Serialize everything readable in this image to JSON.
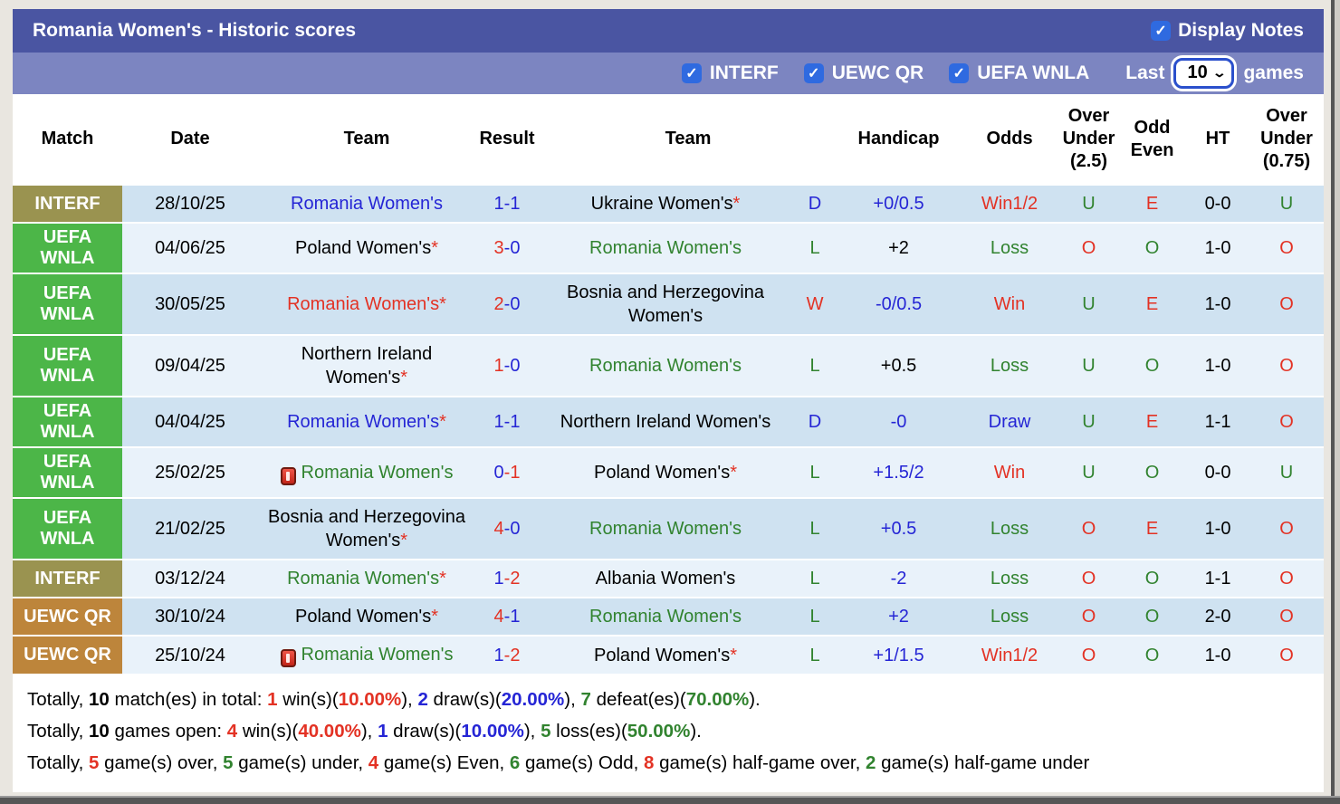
{
  "colors": {
    "badge_interf": "#9a9350",
    "badge_uefa_wnla": "#4cb648",
    "badge_uewc_qr": "#bd853b",
    "title_bar": "#4a55a2",
    "filter_bar": "#7c85c1",
    "checkbox_blue": "#2f6ae0",
    "row_dark": "#cfe2f1",
    "row_light": "#e9f2fa",
    "text_red": "#e33224",
    "text_blue": "#2525d5",
    "text_green": "#31832f"
  },
  "title_bar": {
    "title": "Romania Women's - Historic scores",
    "display_notes_label": "Display Notes",
    "display_notes_checked": true,
    "check_glyph": "✓"
  },
  "filter_bar": {
    "competitions": [
      {
        "label": "INTERF",
        "checked": true
      },
      {
        "label": "UEWC QR",
        "checked": true
      },
      {
        "label": "UEFA WNLA",
        "checked": true
      }
    ],
    "last_label": "Last",
    "games_count": "10",
    "chevron": "⌄",
    "games_label": "games"
  },
  "table": {
    "headers": [
      "Match",
      "Date",
      "Team",
      "Result",
      "Team",
      "Handicap",
      "Odds",
      "Over Under (2.5)",
      "Odd Even",
      "HT",
      "Over Under (0.75)"
    ],
    "rows": [
      {
        "competition": "INTERF",
        "badge_color": "#9a9350",
        "date": "28/10/25",
        "team1": {
          "name": "Romania Women's",
          "color": "blue",
          "asterisk": false,
          "icon": false
        },
        "result": {
          "s1": "1",
          "c1": "blue",
          "s2": "-1",
          "c2": "blue"
        },
        "team2": {
          "name": "Ukraine Women's",
          "color": "black",
          "asterisk": true,
          "icon": false
        },
        "wdl": {
          "text": "D",
          "color": "blue"
        },
        "handicap": {
          "text": "+0/0.5",
          "color": "blue"
        },
        "odds": {
          "text": "Win1/2",
          "color": "red"
        },
        "ou25": {
          "text": "U",
          "color": "green"
        },
        "oddeven": {
          "text": "E",
          "color": "red"
        },
        "ht": "0-0",
        "ou075": {
          "text": "U",
          "color": "green"
        }
      },
      {
        "competition": "UEFA WNLA",
        "badge_color": "#4cb648",
        "date": "04/06/25",
        "team1": {
          "name": "Poland Women's",
          "color": "black",
          "asterisk": true,
          "icon": false
        },
        "result": {
          "s1": "3",
          "c1": "red",
          "s2": "-0",
          "c2": "blue"
        },
        "team2": {
          "name": "Romania Women's",
          "color": "green",
          "asterisk": false,
          "icon": false
        },
        "wdl": {
          "text": "L",
          "color": "green"
        },
        "handicap": {
          "text": "+2",
          "color": "black"
        },
        "odds": {
          "text": "Loss",
          "color": "green"
        },
        "ou25": {
          "text": "O",
          "color": "red"
        },
        "oddeven": {
          "text": "O",
          "color": "green"
        },
        "ht": "1-0",
        "ou075": {
          "text": "O",
          "color": "red"
        }
      },
      {
        "competition": "UEFA WNLA",
        "badge_color": "#4cb648",
        "date": "30/05/25",
        "team1": {
          "name": "Romania Women's",
          "color": "red",
          "asterisk": true,
          "icon": false
        },
        "result": {
          "s1": "2",
          "c1": "red",
          "s2": "-0",
          "c2": "blue"
        },
        "team2": {
          "name": "Bosnia and Herzegovina Women's",
          "color": "black",
          "asterisk": false,
          "icon": false
        },
        "wdl": {
          "text": "W",
          "color": "red"
        },
        "handicap": {
          "text": "-0/0.5",
          "color": "blue"
        },
        "odds": {
          "text": "Win",
          "color": "red"
        },
        "ou25": {
          "text": "U",
          "color": "green"
        },
        "oddeven": {
          "text": "E",
          "color": "red"
        },
        "ht": "1-0",
        "ou075": {
          "text": "O",
          "color": "red"
        }
      },
      {
        "competition": "UEFA WNLA",
        "badge_color": "#4cb648",
        "date": "09/04/25",
        "team1": {
          "name": "Northern Ireland Women's",
          "color": "black",
          "asterisk": true,
          "icon": false
        },
        "result": {
          "s1": "1",
          "c1": "red",
          "s2": "-0",
          "c2": "blue"
        },
        "team2": {
          "name": "Romania Women's",
          "color": "green",
          "asterisk": false,
          "icon": false
        },
        "wdl": {
          "text": "L",
          "color": "green"
        },
        "handicap": {
          "text": "+0.5",
          "color": "black"
        },
        "odds": {
          "text": "Loss",
          "color": "green"
        },
        "ou25": {
          "text": "U",
          "color": "green"
        },
        "oddeven": {
          "text": "O",
          "color": "green"
        },
        "ht": "1-0",
        "ou075": {
          "text": "O",
          "color": "red"
        }
      },
      {
        "competition": "UEFA WNLA",
        "badge_color": "#4cb648",
        "date": "04/04/25",
        "team1": {
          "name": "Romania Women's",
          "color": "blue",
          "asterisk": true,
          "icon": false
        },
        "result": {
          "s1": "1",
          "c1": "blue",
          "s2": "-1",
          "c2": "blue"
        },
        "team2": {
          "name": "Northern Ireland Women's",
          "color": "black",
          "asterisk": false,
          "icon": false
        },
        "wdl": {
          "text": "D",
          "color": "blue"
        },
        "handicap": {
          "text": "-0",
          "color": "blue"
        },
        "odds": {
          "text": "Draw",
          "color": "blue"
        },
        "ou25": {
          "text": "U",
          "color": "green"
        },
        "oddeven": {
          "text": "E",
          "color": "red"
        },
        "ht": "1-1",
        "ou075": {
          "text": "O",
          "color": "red"
        }
      },
      {
        "competition": "UEFA WNLA",
        "badge_color": "#4cb648",
        "date": "25/02/25",
        "team1": {
          "name": "Romania Women's",
          "color": "green",
          "asterisk": false,
          "icon": true
        },
        "result": {
          "s1": "0",
          "c1": "blue",
          "s2": "-1",
          "c2": "red"
        },
        "team2": {
          "name": "Poland Women's",
          "color": "black",
          "asterisk": true,
          "icon": false
        },
        "wdl": {
          "text": "L",
          "color": "green"
        },
        "handicap": {
          "text": "+1.5/2",
          "color": "blue"
        },
        "odds": {
          "text": "Win",
          "color": "red"
        },
        "ou25": {
          "text": "U",
          "color": "green"
        },
        "oddeven": {
          "text": "O",
          "color": "green"
        },
        "ht": "0-0",
        "ou075": {
          "text": "U",
          "color": "green"
        }
      },
      {
        "competition": "UEFA WNLA",
        "badge_color": "#4cb648",
        "date": "21/02/25",
        "team1": {
          "name": "Bosnia and Herzegovina Women's",
          "color": "black",
          "asterisk": true,
          "icon": false
        },
        "result": {
          "s1": "4",
          "c1": "red",
          "s2": "-0",
          "c2": "blue"
        },
        "team2": {
          "name": "Romania Women's",
          "color": "green",
          "asterisk": false,
          "icon": false
        },
        "wdl": {
          "text": "L",
          "color": "green"
        },
        "handicap": {
          "text": "+0.5",
          "color": "blue"
        },
        "odds": {
          "text": "Loss",
          "color": "green"
        },
        "ou25": {
          "text": "O",
          "color": "red"
        },
        "oddeven": {
          "text": "E",
          "color": "red"
        },
        "ht": "1-0",
        "ou075": {
          "text": "O",
          "color": "red"
        }
      },
      {
        "competition": "INTERF",
        "badge_color": "#9a9350",
        "date": "03/12/24",
        "team1": {
          "name": "Romania Women's",
          "color": "green",
          "asterisk": true,
          "icon": false
        },
        "result": {
          "s1": "1",
          "c1": "blue",
          "s2": "-2",
          "c2": "red"
        },
        "team2": {
          "name": "Albania Women's",
          "color": "black",
          "asterisk": false,
          "icon": false
        },
        "wdl": {
          "text": "L",
          "color": "green"
        },
        "handicap": {
          "text": "-2",
          "color": "blue"
        },
        "odds": {
          "text": "Loss",
          "color": "green"
        },
        "ou25": {
          "text": "O",
          "color": "red"
        },
        "oddeven": {
          "text": "O",
          "color": "green"
        },
        "ht": "1-1",
        "ou075": {
          "text": "O",
          "color": "red"
        }
      },
      {
        "competition": "UEWC QR",
        "badge_color": "#bd853b",
        "date": "30/10/24",
        "team1": {
          "name": "Poland Women's",
          "color": "black",
          "asterisk": true,
          "icon": false
        },
        "result": {
          "s1": "4",
          "c1": "red",
          "s2": "-1",
          "c2": "blue"
        },
        "team2": {
          "name": "Romania Women's",
          "color": "green",
          "asterisk": false,
          "icon": false
        },
        "wdl": {
          "text": "L",
          "color": "green"
        },
        "handicap": {
          "text": "+2",
          "color": "blue"
        },
        "odds": {
          "text": "Loss",
          "color": "green"
        },
        "ou25": {
          "text": "O",
          "color": "red"
        },
        "oddeven": {
          "text": "O",
          "color": "green"
        },
        "ht": "2-0",
        "ou075": {
          "text": "O",
          "color": "red"
        }
      },
      {
        "competition": "UEWC QR",
        "badge_color": "#bd853b",
        "date": "25/10/24",
        "team1": {
          "name": "Romania Women's",
          "color": "green",
          "asterisk": false,
          "icon": true
        },
        "result": {
          "s1": "1",
          "c1": "blue",
          "s2": "-2",
          "c2": "red"
        },
        "team2": {
          "name": "Poland Women's",
          "color": "black",
          "asterisk": true,
          "icon": false
        },
        "wdl": {
          "text": "L",
          "color": "green"
        },
        "handicap": {
          "text": "+1/1.5",
          "color": "blue"
        },
        "odds": {
          "text": "Win1/2",
          "color": "red"
        },
        "ou25": {
          "text": "O",
          "color": "red"
        },
        "oddeven": {
          "text": "O",
          "color": "green"
        },
        "ht": "1-0",
        "ou075": {
          "text": "O",
          "color": "red"
        }
      }
    ]
  },
  "footer": {
    "lines": [
      {
        "segments": [
          {
            "t": "Totally, ",
            "c": "k",
            "b": false
          },
          {
            "t": "10",
            "c": "k",
            "b": true
          },
          {
            "t": " match(es) in total: ",
            "c": "k",
            "b": false
          },
          {
            "t": "1",
            "c": "r",
            "b": true
          },
          {
            "t": " win(s)(",
            "c": "k",
            "b": false
          },
          {
            "t": "10.00%",
            "c": "r",
            "b": true
          },
          {
            "t": "), ",
            "c": "k",
            "b": false
          },
          {
            "t": "2",
            "c": "b",
            "b": true
          },
          {
            "t": " draw(s)(",
            "c": "k",
            "b": false
          },
          {
            "t": "20.00%",
            "c": "b",
            "b": true
          },
          {
            "t": "), ",
            "c": "k",
            "b": false
          },
          {
            "t": "7",
            "c": "g",
            "b": true
          },
          {
            "t": " defeat(es)(",
            "c": "k",
            "b": false
          },
          {
            "t": "70.00%",
            "c": "g",
            "b": true
          },
          {
            "t": ").",
            "c": "k",
            "b": false
          }
        ]
      },
      {
        "segments": [
          {
            "t": "Totally, ",
            "c": "k",
            "b": false
          },
          {
            "t": "10",
            "c": "k",
            "b": true
          },
          {
            "t": " games open: ",
            "c": "k",
            "b": false
          },
          {
            "t": "4",
            "c": "r",
            "b": true
          },
          {
            "t": " win(s)(",
            "c": "k",
            "b": false
          },
          {
            "t": "40.00%",
            "c": "r",
            "b": true
          },
          {
            "t": "), ",
            "c": "k",
            "b": false
          },
          {
            "t": "1",
            "c": "b",
            "b": true
          },
          {
            "t": " draw(s)(",
            "c": "k",
            "b": false
          },
          {
            "t": "10.00%",
            "c": "b",
            "b": true
          },
          {
            "t": "), ",
            "c": "k",
            "b": false
          },
          {
            "t": "5",
            "c": "g",
            "b": true
          },
          {
            "t": " loss(es)(",
            "c": "k",
            "b": false
          },
          {
            "t": "50.00%",
            "c": "g",
            "b": true
          },
          {
            "t": ").",
            "c": "k",
            "b": false
          }
        ]
      },
      {
        "segments": [
          {
            "t": "Totally, ",
            "c": "k",
            "b": false
          },
          {
            "t": "5",
            "c": "r",
            "b": true
          },
          {
            "t": " game(s) over, ",
            "c": "k",
            "b": false
          },
          {
            "t": "5",
            "c": "g",
            "b": true
          },
          {
            "t": " game(s) under, ",
            "c": "k",
            "b": false
          },
          {
            "t": "4",
            "c": "r",
            "b": true
          },
          {
            "t": " game(s) Even, ",
            "c": "k",
            "b": false
          },
          {
            "t": "6",
            "c": "g",
            "b": true
          },
          {
            "t": " game(s) Odd, ",
            "c": "k",
            "b": false
          },
          {
            "t": "8",
            "c": "r",
            "b": true
          },
          {
            "t": " game(s) half-game over, ",
            "c": "k",
            "b": false
          },
          {
            "t": "2",
            "c": "g",
            "b": true
          },
          {
            "t": " game(s) half-game under",
            "c": "k",
            "b": false
          }
        ]
      }
    ]
  }
}
